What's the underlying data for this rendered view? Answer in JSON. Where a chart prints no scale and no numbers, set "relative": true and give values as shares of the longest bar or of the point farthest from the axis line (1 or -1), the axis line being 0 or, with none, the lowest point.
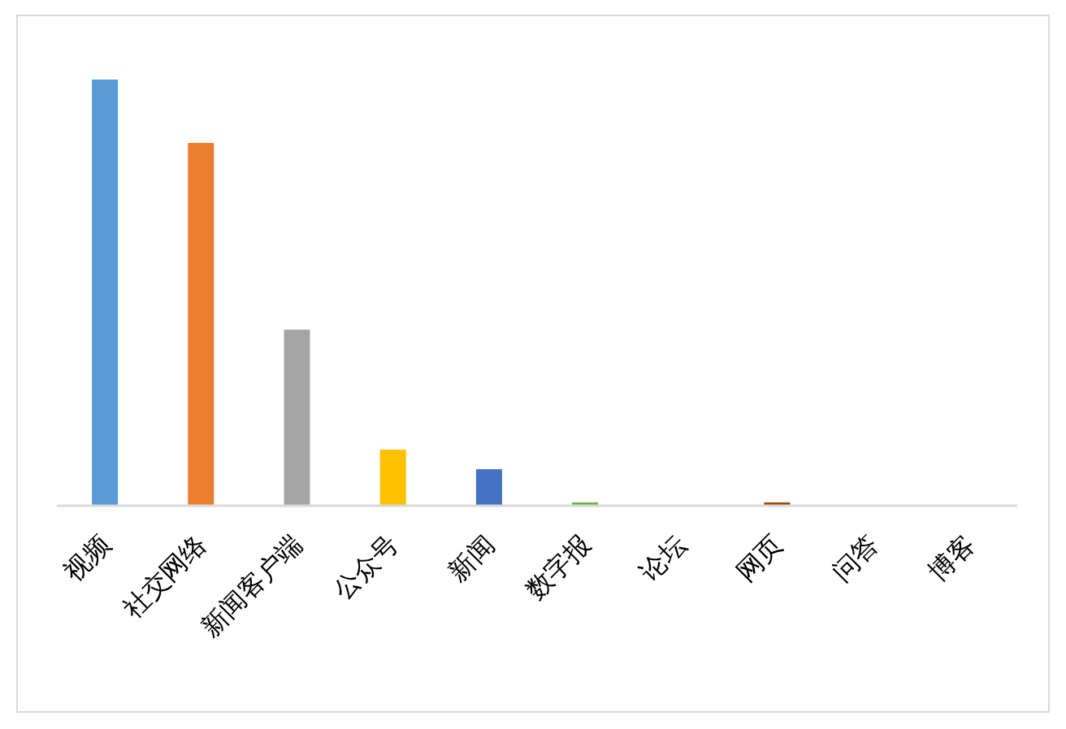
{
  "chart_data": {
    "type": "bar",
    "relative": true,
    "categories": [
      "视频",
      "社交网络",
      "新闻客户端",
      "公众号",
      "新闻",
      "数字报",
      "论坛",
      "网页",
      "问答",
      "博客"
    ],
    "values": [
      1,
      0.851,
      0.412,
      0.13,
      0.084,
      0.006,
      0,
      0.006,
      0,
      0
    ],
    "colors": [
      "#5b9bd5",
      "#ed7d31",
      "#a5a5a5",
      "#ffc000",
      "#4472c4",
      "#70ad47",
      "#255e91",
      "#9e480e",
      "#636363",
      "#997300"
    ]
  }
}
